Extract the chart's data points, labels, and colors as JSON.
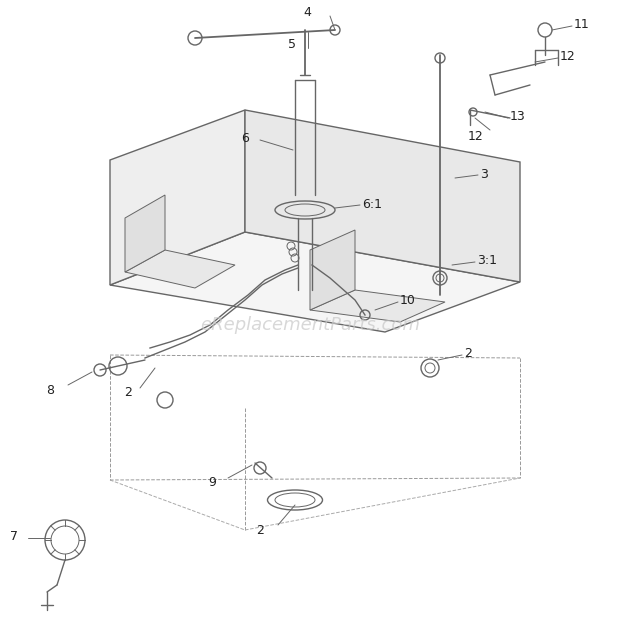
{
  "bg_color": "#ffffff",
  "watermark": "eReplacementParts.com",
  "watermark_color": "#c8c8c8",
  "watermark_fontsize": 13,
  "line_color": "#666666",
  "label_color": "#222222",
  "label_fontsize": 9,
  "fig_width": 6.2,
  "fig_height": 6.4,
  "dpi": 100
}
